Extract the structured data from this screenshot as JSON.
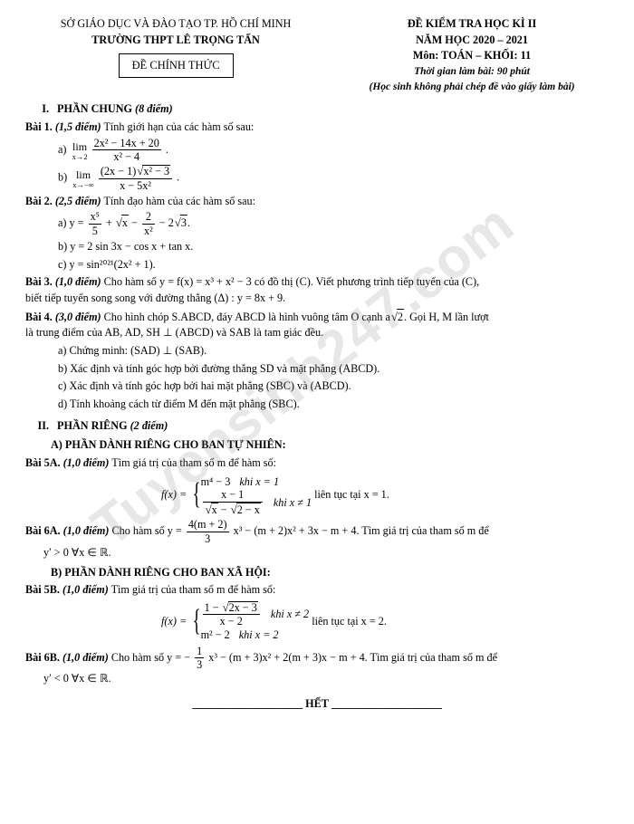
{
  "header": {
    "left_line1": "SỞ GIÁO DỤC VÀ ĐÀO TẠO TP. HỒ CHÍ MINH",
    "left_line2": "TRƯỜNG THPT LÊ TRỌNG TẤN",
    "box": "ĐỀ CHÍNH THỨC",
    "right_line1": "ĐỀ KIỂM TRA HỌC KÌ II",
    "right_line2": "NĂM HỌC 2020 – 2021",
    "right_line3": "Môn: TOÁN – KHỐI: 11",
    "right_line4": "Thời gian làm bài: 90 phút",
    "right_line5": "(Học sinh không phải chép đề vào giấy làm bài)"
  },
  "sections": {
    "s1_title": "PHẦN CHUNG",
    "s1_pts": "(8 điểm)",
    "s2_title": "PHẦN RIÊNG",
    "s2_pts": "(2 điểm)",
    "subA": "A) PHẦN DÀNH RIÊNG CHO BAN TỰ NHIÊN:",
    "subB": "B) PHẦN DÀNH RIÊNG CHO BAN XÃ HỘI:"
  },
  "bai1": {
    "label": "Bài 1.",
    "pts": "(1,5 điểm)",
    "stem": "Tính giới hạn của các hàm số sau:",
    "a_num": "2x² − 14x + 20",
    "a_den": "x² − 4",
    "a_lim": "x→2",
    "b_num_left": "(2x − 1)",
    "b_num_rad": "x² − 3",
    "b_den": "x − 5x²",
    "b_lim": "x→−∞"
  },
  "bai2": {
    "label": "Bài 2.",
    "pts": "(2,5 điểm)",
    "stem": "Tính đạo hàm của các hàm số sau:",
    "a_lhs": "y = ",
    "a_f1_num": "x⁵",
    "a_f1_den": "5",
    "a_mid": " + ",
    "a_rad": "x",
    "a_mid2": " − ",
    "a_f2_num": "2",
    "a_f2_den": "x²",
    "a_tail": " − 2",
    "a_tail_rad": "3",
    "b": "y = 2 sin 3x − cos x + tan x.",
    "c": "y = sin²⁰²¹(2x² + 1)."
  },
  "bai3": {
    "label": "Bài 3.",
    "pts": "(1,0 điểm)",
    "text_a": "Cho hàm số y = f(x) = x³ + x² − 3 có đồ thị (C). Viết phương trình tiếp tuyến của (C),",
    "text_b": "biết tiếp tuyến song song với đường thẳng (Δ) : y = 8x + 9."
  },
  "bai4": {
    "label": "Bài 4.",
    "pts": "(3,0 điểm)",
    "text_a": "Cho hình chóp S.ABCD, đáy ABCD là hình vuông tâm O cạnh a",
    "text_a_rad": "2",
    "text_a2": ". Gọi H, M lần lượt",
    "text_b": "là trung điểm của AB, AD, SH ⊥ (ABCD) và SAB là tam giác đều.",
    "sa": "a) Chứng minh: (SAD) ⊥ (SAB).",
    "sb": "b) Xác định và tính góc hợp bởi đường thẳng SD và mặt phẳng (ABCD).",
    "sc": "c) Xác định và tính góc hợp bởi hai mặt phẳng (SBC) và (ABCD).",
    "sd": "d) Tính khoảng cách từ điểm M đến mặt phẳng (SBC)."
  },
  "bai5A": {
    "label": "Bài 5A.",
    "pts": "(1,0 điểm)",
    "stem": "Tìm giá trị của tham số m để hàm số:",
    "fx": "f(x) = ",
    "row1_l": "m⁴ − 3",
    "row1_r": "khi x = 1",
    "row2_num": "x − 1",
    "row2_den_rad1": "x",
    "row2_den_mid": " − ",
    "row2_den_rad2": "2 − x",
    "row2_r": "khi x ≠ 1",
    "tail": " liên tục tại x = 1."
  },
  "bai6A": {
    "label": "Bài 6A.",
    "pts": "(1,0 điểm)",
    "pre": "Cho hàm số y = ",
    "f_num": "4(m + 2)",
    "f_den": "3",
    "mid": " x³ − (m + 2)x² + 3x − m + 4. Tìm giá trị của tham số m để",
    "line2": "y′ > 0 ∀x ∈ ℝ."
  },
  "bai5B": {
    "label": "Bài 5B.",
    "pts": "(1,0 điểm)",
    "stem": "Tìm giá trị của tham số m để hàm số:",
    "fx": "f(x) = ",
    "row1_num_pre": "1 − ",
    "row1_num_rad": "2x − 3",
    "row1_den": "x − 2",
    "row1_r": "khi x ≠ 2",
    "row2_l": "m² − 2",
    "row2_r": "khi x = 2",
    "tail": " liên tục tại x = 2."
  },
  "bai6B": {
    "label": "Bài 6B.",
    "pts": "(1,0 điểm)",
    "pre": "Cho hàm số y = −",
    "f_num": "1",
    "f_den": "3",
    "mid": " x³ − (m + 3)x² + 2(m + 3)x − m + 4. Tìm giá trị của tham số m để",
    "line2": "y′ < 0 ∀x ∈ ℝ."
  },
  "end": "HẾT",
  "watermark": "Tuyensinh247.com"
}
